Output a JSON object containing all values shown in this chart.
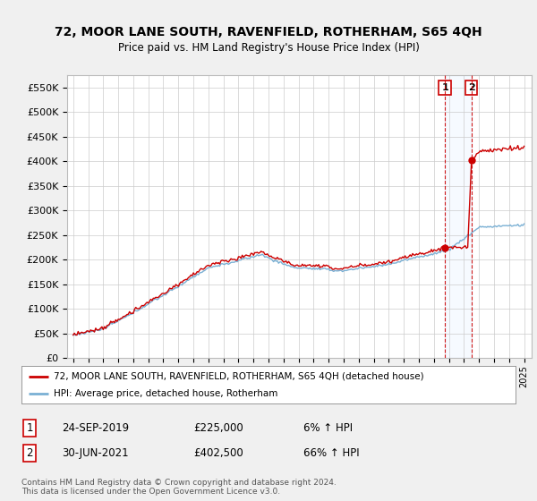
{
  "title": "72, MOOR LANE SOUTH, RAVENFIELD, ROTHERHAM, S65 4QH",
  "subtitle": "Price paid vs. HM Land Registry's House Price Index (HPI)",
  "ylabel_ticks": [
    "£0",
    "£50K",
    "£100K",
    "£150K",
    "£200K",
    "£250K",
    "£300K",
    "£350K",
    "£400K",
    "£450K",
    "£500K",
    "£550K"
  ],
  "ytick_values": [
    0,
    50000,
    100000,
    150000,
    200000,
    250000,
    300000,
    350000,
    400000,
    450000,
    500000,
    550000
  ],
  "ylim": [
    0,
    575000
  ],
  "hpi_color": "#7ab0d4",
  "price_color": "#cc0000",
  "marker1_date": 2019.73,
  "marker1_price": 225000,
  "marker2_date": 2021.49,
  "marker2_price": 402500,
  "legend_line1": "72, MOOR LANE SOUTH, RAVENFIELD, ROTHERHAM, S65 4QH (detached house)",
  "legend_line2": "HPI: Average price, detached house, Rotherham",
  "footer": "Contains HM Land Registry data © Crown copyright and database right 2024.\nThis data is licensed under the Open Government Licence v3.0.",
  "bg_color": "#f0f0f0",
  "plot_bg_color": "#ffffff",
  "grid_color": "#cccccc",
  "annotation_box_color": "#cc0000",
  "dashed_line_color": "#cc0000",
  "shade_color": "#ddeeff"
}
